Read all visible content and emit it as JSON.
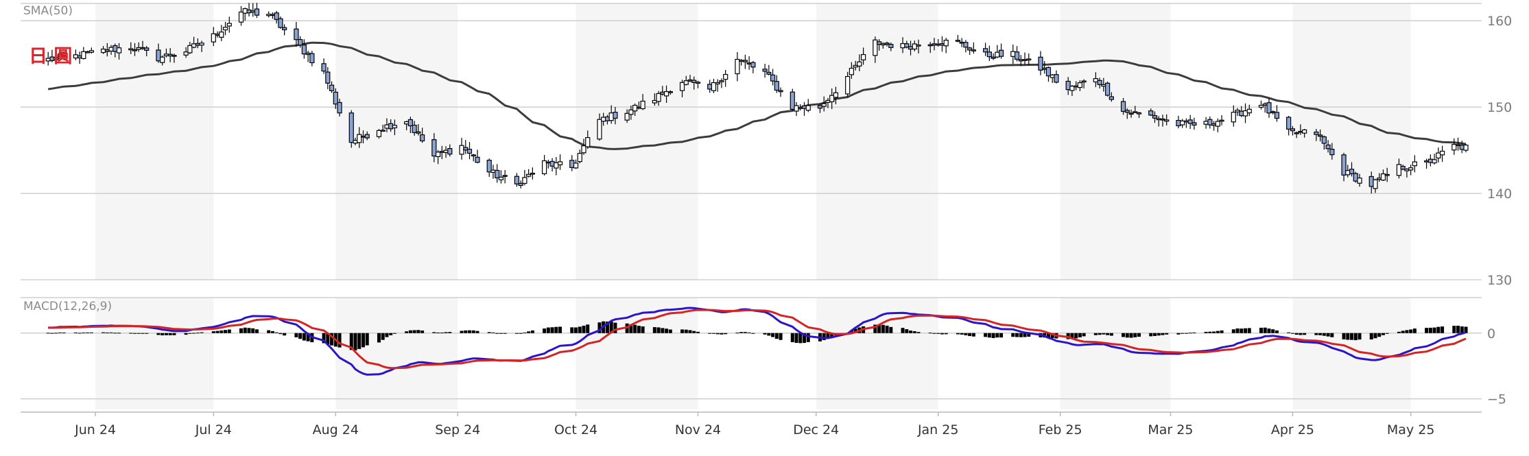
{
  "chart_data": {
    "type": "candlestick",
    "tag": "日 圓",
    "colors": {
      "tag": "#d9262c",
      "up_fill": "#ffffff",
      "down_fill": "#8aa4d4",
      "candle_stroke": "#000000",
      "sma": "#3c3c3c",
      "macd_line": "#2b13c7",
      "signal_line": "#d42424",
      "histogram": "#000000",
      "band": "#f5f5f5",
      "grid": "#cfcfcf"
    },
    "price_panel": {
      "indicator_label": "SMA(50)",
      "ylim": [
        130,
        162
      ],
      "yticks": [
        130,
        140,
        150,
        160
      ],
      "grid": true
    },
    "macd_panel": {
      "indicator_label": "MACD(12,26,9)",
      "ylim": [
        -5.8,
        2.7
      ],
      "yticks": [
        0,
        -5
      ],
      "ytick_labels": [
        "0",
        "−5"
      ]
    },
    "month_labels": [
      "Jun 24",
      "Jul 24",
      "Aug 24",
      "Sep 24",
      "Oct 24",
      "Nov 24",
      "Dec 24",
      "Jan 25",
      "Feb 25",
      "Mar 25",
      "Apr 25",
      "May 25"
    ],
    "close_anchors": [
      [
        "2024-05-20",
        155.5
      ],
      [
        "2024-05-27",
        155.9
      ],
      [
        "2024-06-03",
        156.5
      ],
      [
        "2024-06-10",
        157.0
      ],
      [
        "2024-06-17",
        155.7
      ],
      [
        "2024-06-24",
        156.5
      ],
      [
        "2024-07-01",
        158.2
      ],
      [
        "2024-07-08",
        161.0
      ],
      [
        "2024-07-15",
        160.8
      ],
      [
        "2024-07-22",
        157.5
      ],
      [
        "2024-07-29",
        154.0
      ],
      [
        "2024-08-05",
        146.0
      ],
      [
        "2024-08-12",
        147.5
      ],
      [
        "2024-08-19",
        148.5
      ],
      [
        "2024-08-26",
        144.3
      ],
      [
        "2024-09-02",
        145.5
      ],
      [
        "2024-09-09",
        142.5
      ],
      [
        "2024-09-16",
        141.0
      ],
      [
        "2024-09-23",
        143.5
      ],
      [
        "2024-09-30",
        143.0
      ],
      [
        "2024-10-07",
        148.5
      ],
      [
        "2024-10-14",
        149.5
      ],
      [
        "2024-10-21",
        151.0
      ],
      [
        "2024-10-28",
        153.0
      ],
      [
        "2024-11-04",
        152.0
      ],
      [
        "2024-11-11",
        155.5
      ],
      [
        "2024-11-18",
        154.0
      ],
      [
        "2024-11-25",
        150.0
      ],
      [
        "2024-12-02",
        150.0
      ],
      [
        "2024-12-09",
        153.5
      ],
      [
        "2024-12-16",
        157.5
      ],
      [
        "2024-12-23",
        157.0
      ],
      [
        "2024-12-30",
        157.5
      ],
      [
        "2025-01-06",
        157.5
      ],
      [
        "2025-01-13",
        156.0
      ],
      [
        "2025-01-20",
        156.0
      ],
      [
        "2025-01-27",
        154.5
      ],
      [
        "2025-02-03",
        152.0
      ],
      [
        "2025-02-10",
        153.5
      ],
      [
        "2025-02-17",
        149.5
      ],
      [
        "2025-02-24",
        149.0
      ],
      [
        "2025-03-03",
        148.0
      ],
      [
        "2025-03-10",
        148.0
      ],
      [
        "2025-03-17",
        149.0
      ],
      [
        "2025-03-24",
        150.5
      ],
      [
        "2025-03-31",
        147.0
      ],
      [
        "2025-04-07",
        147.0
      ],
      [
        "2025-04-14",
        142.5
      ],
      [
        "2025-04-21",
        141.0
      ],
      [
        "2025-04-28",
        143.0
      ],
      [
        "2025-05-05",
        143.5
      ],
      [
        "2025-05-12",
        145.5
      ],
      [
        "2025-05-15",
        145.3
      ]
    ]
  }
}
